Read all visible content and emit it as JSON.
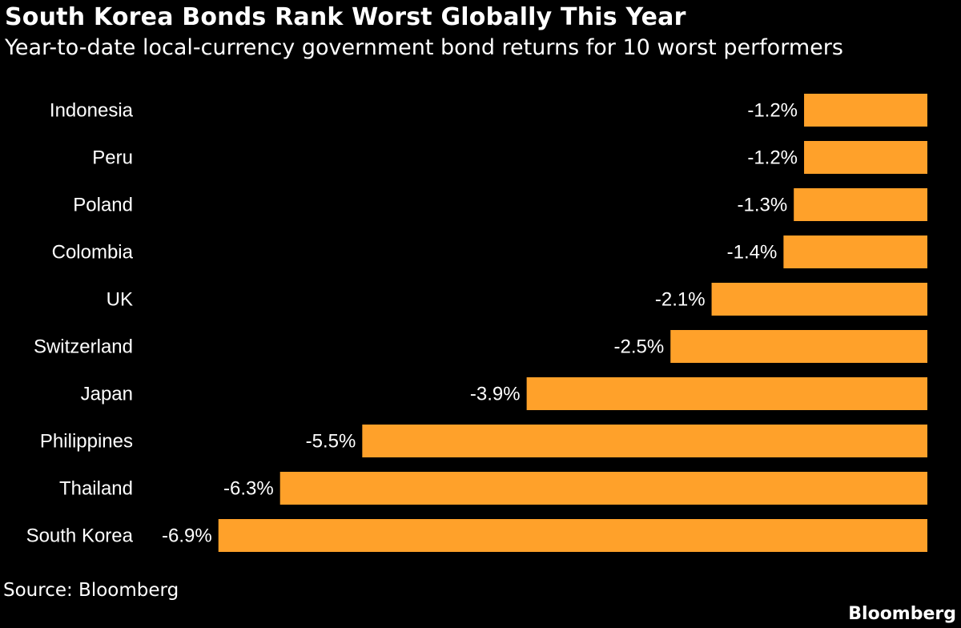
{
  "chart_data": {
    "type": "bar",
    "orientation": "horizontal",
    "title": "South Korea Bonds Rank Worst Globally This Year",
    "subtitle": "Year-to-date local-currency government bond returns for 10 worst performers",
    "categories": [
      "Indonesia",
      "Peru",
      "Poland",
      "Colombia",
      "UK",
      "Switzerland",
      "Japan",
      "Philippines",
      "Thailand",
      "South Korea"
    ],
    "values": [
      -1.2,
      -1.2,
      -1.3,
      -1.4,
      -2.1,
      -2.5,
      -3.9,
      -5.5,
      -6.3,
      -6.9
    ],
    "value_labels": [
      "-1.2%",
      "-1.2%",
      "-1.3%",
      "-1.4%",
      "-2.1%",
      "-2.5%",
      "-3.9%",
      "-5.5%",
      "-6.3%",
      "-6.9%"
    ],
    "unit": "%",
    "xlim": [
      -6.9,
      0
    ],
    "grid": false,
    "bar_color": "#ffa12a",
    "background_color": "#000000",
    "text_color": "#ffffff"
  },
  "footer": {
    "source": "Source: Bloomberg",
    "brand": "Bloomberg"
  }
}
